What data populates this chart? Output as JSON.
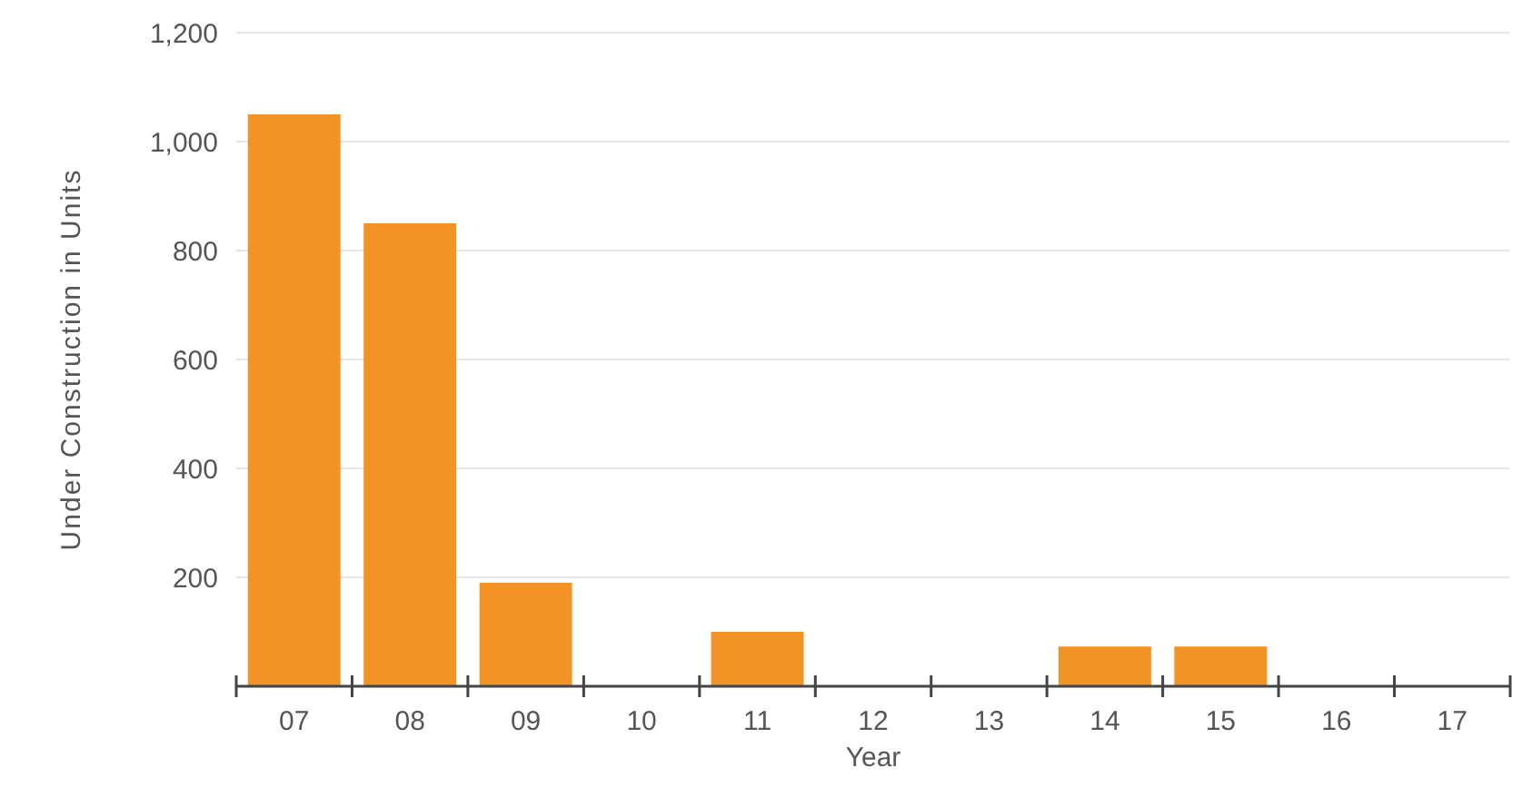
{
  "chart_data": {
    "type": "bar",
    "xlabel": "Year",
    "ylabel": "Under Construction in Units",
    "categories": [
      "07",
      "08",
      "09",
      "10",
      "11",
      "12",
      "13",
      "14",
      "15",
      "16",
      "17"
    ],
    "values": [
      1050,
      850,
      190,
      0,
      100,
      0,
      0,
      73,
      73,
      0,
      0
    ],
    "color": "#f39325",
    "ylim": [
      0,
      1200
    ],
    "yticks": [
      200,
      400,
      600,
      800,
      {
        "value": 1000,
        "label": "1,000"
      },
      {
        "value": 1200,
        "label": "1,200"
      }
    ],
    "grid": "y"
  }
}
